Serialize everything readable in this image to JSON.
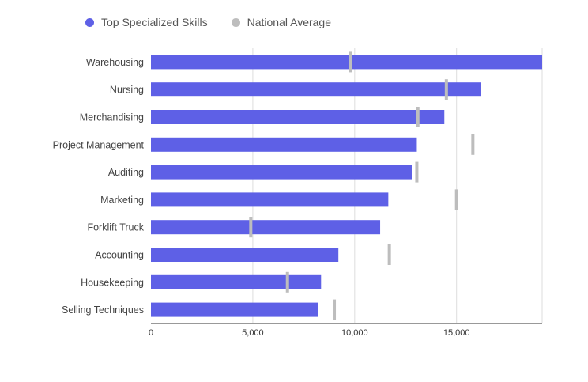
{
  "legend": {
    "primary_label": "Top Specialized Skills",
    "secondary_label": "National Average"
  },
  "colors": {
    "primary": "#5E60E6",
    "secondary": "#BDBDBD",
    "grid": "#DDDDDD",
    "axis": "#333333",
    "label": "#444444"
  },
  "chart_data": {
    "type": "bar",
    "orientation": "horizontal",
    "title": "",
    "xlabel": "",
    "ylabel": "",
    "categories": [
      "Warehousing",
      "Nursing",
      "Merchandising",
      "Project Management",
      "Auditing",
      "Marketing",
      "Forklift Truck",
      "Accounting",
      "Housekeeping",
      "Selling Techniques"
    ],
    "series": [
      {
        "name": "Top Specialized Skills",
        "values": [
          19200,
          16200,
          14400,
          13050,
          12800,
          11650,
          11250,
          9200,
          8350,
          8200
        ]
      },
      {
        "name": "National Average",
        "marker": "tick",
        "values": [
          9800,
          14500,
          13100,
          15800,
          13050,
          15000,
          4900,
          11700,
          6700,
          9000
        ]
      }
    ],
    "xlim": [
      0,
      19200
    ],
    "xticks": [
      0,
      5000,
      10000,
      15000
    ],
    "xtick_labels": [
      "0",
      "5,000",
      "10,000",
      "15,000"
    ],
    "grid": "vertical",
    "legend_position": "top-left"
  }
}
